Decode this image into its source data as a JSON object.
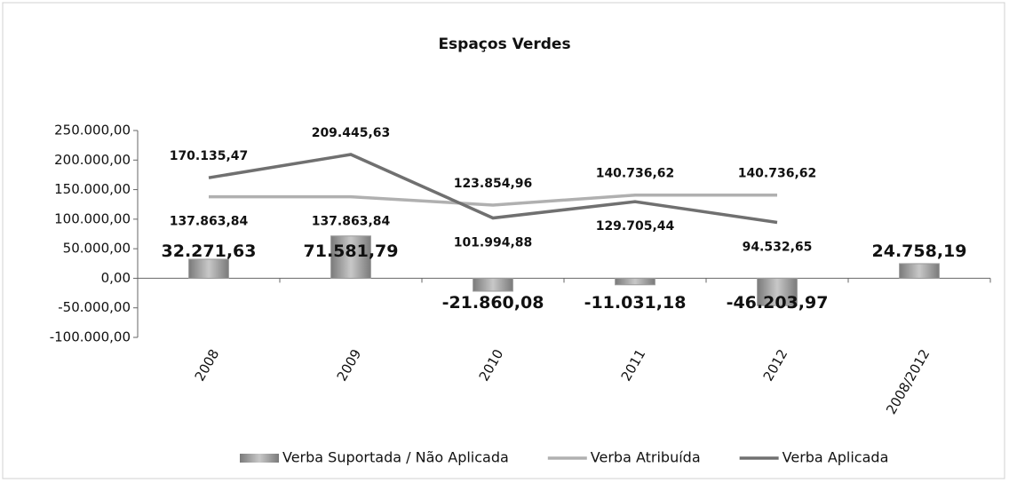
{
  "chart_data": {
    "type": "bar_line",
    "title": "Espaços Verdes",
    "categories": [
      "2008",
      "2009",
      "2010",
      "2011",
      "2012",
      "2008/2012"
    ],
    "series": [
      {
        "name": "Verba Suportada / Não Aplicada",
        "type": "bar",
        "color": "#9a9a9a",
        "values": [
          32271.63,
          71581.79,
          -21860.08,
          -11031.18,
          -46203.97,
          24758.19
        ],
        "value_labels": [
          "32.271,63",
          "71.581,79",
          "-21.860,08",
          "-11.031,18",
          "-46.203,97",
          "24.758,19"
        ]
      },
      {
        "name": "Verba Atribuída",
        "type": "line",
        "color": "#b0b0b0",
        "values": [
          137863.84,
          137863.84,
          123854.96,
          140736.62,
          140736.62,
          null
        ],
        "value_labels": [
          "137.863,84",
          "137.863,84",
          "123.854,96",
          "140.736,62",
          "140.736,62",
          null
        ]
      },
      {
        "name": "Verba Aplicada",
        "type": "line",
        "color": "#707070",
        "values": [
          170135.47,
          209445.63,
          101994.88,
          129705.44,
          94532.65,
          null
        ],
        "value_labels": [
          "170.135,47",
          "209.445,63",
          "101.994,88",
          "129.705,44",
          "94.532,65",
          null
        ]
      }
    ],
    "ylim": [
      -100000,
      250000
    ],
    "yticks": [
      {
        "value": -100000,
        "label": "-100.000,00"
      },
      {
        "value": -50000,
        "label": "-50.000,00"
      },
      {
        "value": 0,
        "label": "0,00"
      },
      {
        "value": 50000,
        "label": "50.000,00"
      },
      {
        "value": 100000,
        "label": "100.000,00"
      },
      {
        "value": 150000,
        "label": "150.000,00"
      },
      {
        "value": 200000,
        "label": "200.000,00"
      },
      {
        "value": 250000,
        "label": "250.000,00"
      }
    ],
    "grid": false,
    "legend": "bottom"
  }
}
